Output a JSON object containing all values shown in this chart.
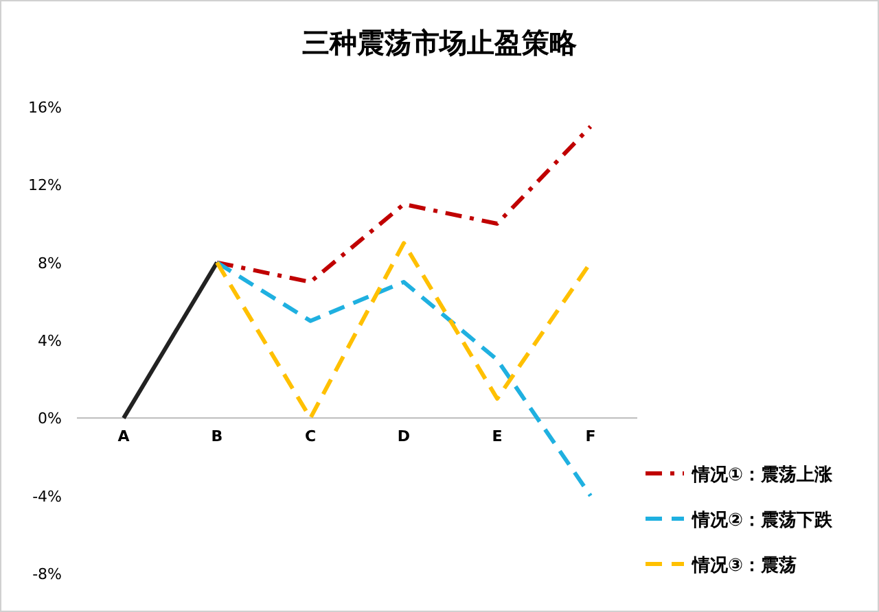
{
  "chart_data": {
    "type": "line",
    "title": "三种震荡市场止盈策略",
    "categories": [
      "A",
      "B",
      "C",
      "D",
      "E",
      "F"
    ],
    "series": [
      {
        "color": "#222222",
        "line_style": "solid",
        "values": [
          0,
          8,
          null,
          null,
          null,
          null
        ]
      },
      {
        "name": "情况①：震荡上涨",
        "color": "#c00000",
        "line_style": "dashdot",
        "values": [
          null,
          8,
          7,
          11,
          10,
          15
        ]
      },
      {
        "name": "情况②：震荡下跌",
        "color": "#1fb0e0",
        "line_style": "dashed",
        "values": [
          null,
          8,
          5,
          7,
          3,
          -4
        ]
      },
      {
        "name": "情况③：震荡",
        "color": "#ffc000",
        "line_style": "dashed",
        "values": [
          null,
          8,
          0,
          9,
          1,
          8
        ]
      }
    ],
    "ylim": [
      -8,
      16
    ],
    "yticks": [
      {
        "value": -8,
        "label": "-8%"
      },
      {
        "value": -4,
        "label": "-4%"
      },
      {
        "value": 0,
        "label": "0%"
      },
      {
        "value": 4,
        "label": "4%"
      },
      {
        "value": 8,
        "label": "8%"
      },
      {
        "value": 12,
        "label": "12%"
      },
      {
        "value": 16,
        "label": "16%"
      }
    ],
    "grid": false,
    "legend": "bottom right",
    "marker": "none"
  }
}
